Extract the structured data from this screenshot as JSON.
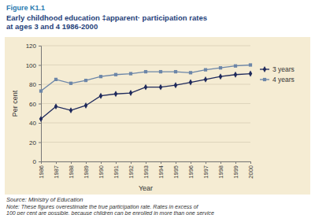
{
  "chart_data": {
    "type": "line",
    "figure": "Figure K1.1",
    "title": [
      "Early childhood education ‡apparent· participation rates",
      "at ages 3 and 4 1986-2000"
    ],
    "x_label": "Year",
    "y_label": "Per cent",
    "source": "Source: Ministry of Education",
    "note": [
      "Note: These figures overestimate the true participation rate. Rates in excess of",
      "100 per cent are possible, because children can be enrolled in more than one service"
    ],
    "x": [
      1986,
      1987,
      1988,
      1989,
      1990,
      1991,
      1992,
      1993,
      1994,
      1995,
      1996,
      1997,
      1998,
      1999,
      2000
    ],
    "series": [
      {
        "name": "3 years",
        "color": "#1f2a5c",
        "marker": "diamond",
        "values": [
          44,
          57,
          53,
          58,
          68,
          70,
          71,
          77,
          77,
          79,
          82,
          85,
          88,
          90,
          91
        ]
      },
      {
        "name": "4 years",
        "color": "#6c86a8",
        "marker": "square",
        "values": [
          73,
          85,
          81,
          84,
          88,
          90,
          91,
          93,
          93,
          93,
          92,
          95,
          97,
          99,
          100
        ]
      }
    ],
    "xlim": [
      1986,
      2000
    ],
    "xticks": [
      1986,
      1987,
      1988,
      1989,
      1990,
      1991,
      1992,
      1993,
      1994,
      1995,
      1996,
      1997,
      1998,
      1999,
      2000
    ],
    "ylim": [
      0,
      120
    ],
    "yticks": [
      0,
      20,
      40,
      60,
      80,
      100,
      120
    ],
    "grid": true,
    "legend": "right"
  }
}
